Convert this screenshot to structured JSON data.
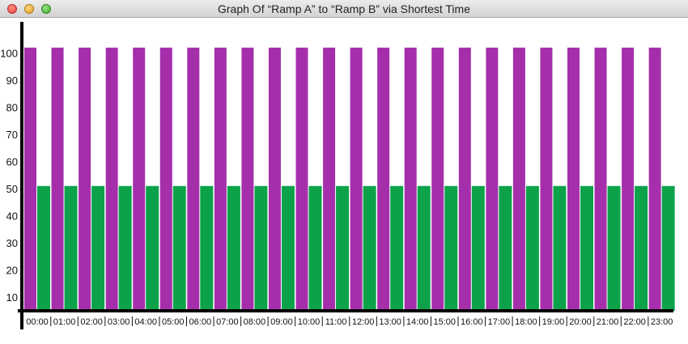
{
  "window": {
    "title": "Graph Of “Ramp A” to “Ramp B” via Shortest Time"
  },
  "colors": {
    "series_a": "#a52fab",
    "series_b": "#0ba24a",
    "axis": "#000000"
  },
  "chart_data": {
    "type": "bar",
    "title": "Graph Of “Ramp A” to “Ramp B” via Shortest Time",
    "xlabel": "",
    "ylabel": "",
    "ylim": [
      5,
      110
    ],
    "yticks": [
      "10",
      "20",
      "30",
      "40",
      "50",
      "60",
      "70",
      "80",
      "90",
      "100"
    ],
    "grid": false,
    "categories": [
      "00:00",
      "01:00",
      "02:00",
      "03:00",
      "04:00",
      "05:00",
      "06:00",
      "07:00",
      "08:00",
      "09:00",
      "10:00",
      "11:00",
      "12:00",
      "13:00",
      "14:00",
      "15:00",
      "16:00",
      "17:00",
      "18:00",
      "19:00",
      "20:00",
      "21:00",
      "22:00",
      "23:00"
    ],
    "series": [
      {
        "values": [
          102,
          102,
          102,
          102,
          102,
          102,
          102,
          102,
          102,
          102,
          102,
          102,
          102,
          102,
          102,
          102,
          102,
          102,
          102,
          102,
          102,
          102,
          102,
          102
        ]
      },
      {
        "values": [
          51,
          51,
          51,
          51,
          51,
          51,
          51,
          51,
          51,
          51,
          51,
          51,
          51,
          51,
          51,
          51,
          51,
          51,
          51,
          51,
          51,
          51,
          51,
          51
        ]
      }
    ]
  }
}
